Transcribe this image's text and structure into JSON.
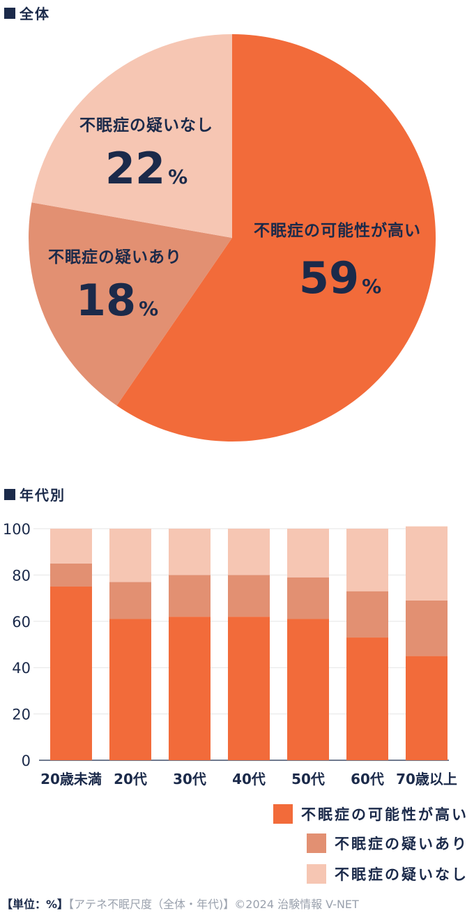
{
  "sections": {
    "overall_title": "全体",
    "by_age_title": "年代別"
  },
  "colors": {
    "high": "#f26b3a",
    "suspected": "#e29072",
    "none": "#f6c6b3",
    "text": "#1b2a4a"
  },
  "chart_data": [
    {
      "type": "pie",
      "slices": [
        {
          "label": "不眠症の可能性が高い",
          "value": 59,
          "unit": "%"
        },
        {
          "label": "不眠症の疑いあり",
          "value": 18,
          "unit": "%"
        },
        {
          "label": "不眠症の疑いなし",
          "value": 22,
          "unit": "%"
        }
      ]
    },
    {
      "type": "bar",
      "stacked": true,
      "categories": [
        "20歳未満",
        "20代",
        "30代",
        "40代",
        "50代",
        "60代",
        "70歳以上"
      ],
      "series": [
        {
          "name": "不眠症の可能性が高い",
          "values": [
            75,
            61,
            62,
            62,
            61,
            53,
            45
          ]
        },
        {
          "name": "不眠症の疑いあり",
          "values": [
            10,
            16,
            18,
            18,
            18,
            20,
            24
          ]
        },
        {
          "name": "不眠症の疑いなし",
          "values": [
            15,
            23,
            20,
            20,
            21,
            27,
            32
          ]
        }
      ],
      "ylim": [
        0,
        100
      ],
      "yticks": [
        0,
        20,
        40,
        60,
        80,
        100
      ],
      "grid": true,
      "legend_position": "bottom-right"
    }
  ],
  "legend": [
    {
      "label": "不眠症の可能性が高い",
      "color": "#f26b3a"
    },
    {
      "label": "不眠症の疑いあり",
      "color": "#e29072"
    },
    {
      "label": "不眠症の疑いなし",
      "color": "#f6c6b3"
    }
  ],
  "footer": {
    "unit": "【単位：%】",
    "source": "【アテネ不眠尺度（全体・年代)】©2024 治験情報 V-NET"
  }
}
